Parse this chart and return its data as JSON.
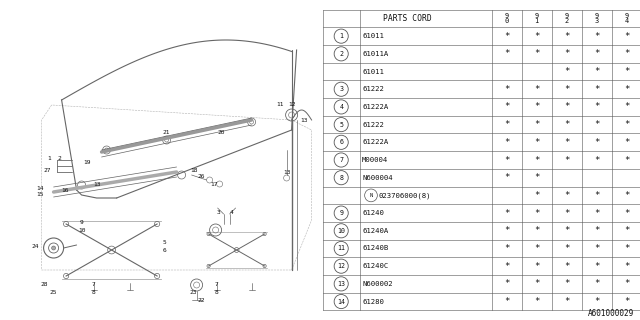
{
  "bg_color": "#ffffff",
  "line_color": "#666666",
  "text_color": "#111111",
  "footer_code": "A601000029",
  "table": {
    "header_parts": "PARTS CORD",
    "header_years": [
      "9\n0",
      "9\n1",
      "9\n2",
      "9\n3",
      "9\n4"
    ],
    "rows": [
      {
        "num": "1",
        "show_circle": true,
        "part": "61011",
        "n_prefix": false,
        "cols": [
          1,
          1,
          1,
          1,
          1
        ]
      },
      {
        "num": "2",
        "show_circle": true,
        "part": "61011A",
        "n_prefix": false,
        "cols": [
          1,
          1,
          1,
          1,
          1
        ]
      },
      {
        "num": "2",
        "show_circle": false,
        "part": "61011",
        "n_prefix": false,
        "cols": [
          0,
          0,
          1,
          1,
          1
        ]
      },
      {
        "num": "3",
        "show_circle": true,
        "part": "61222",
        "n_prefix": false,
        "cols": [
          1,
          1,
          1,
          1,
          1
        ]
      },
      {
        "num": "4",
        "show_circle": true,
        "part": "61222A",
        "n_prefix": false,
        "cols": [
          1,
          1,
          1,
          1,
          1
        ]
      },
      {
        "num": "5",
        "show_circle": true,
        "part": "61222",
        "n_prefix": false,
        "cols": [
          1,
          1,
          1,
          1,
          1
        ]
      },
      {
        "num": "6",
        "show_circle": true,
        "part": "61222A",
        "n_prefix": false,
        "cols": [
          1,
          1,
          1,
          1,
          1
        ]
      },
      {
        "num": "7",
        "show_circle": true,
        "part": "M00004",
        "n_prefix": false,
        "cols": [
          1,
          1,
          1,
          1,
          1
        ]
      },
      {
        "num": "8",
        "show_circle": true,
        "part": "N600004",
        "n_prefix": false,
        "cols": [
          1,
          1,
          0,
          0,
          0
        ]
      },
      {
        "num": "8",
        "show_circle": false,
        "part": "023706000(8)",
        "n_prefix": true,
        "cols": [
          0,
          1,
          1,
          1,
          1
        ]
      },
      {
        "num": "9",
        "show_circle": true,
        "part": "61240",
        "n_prefix": false,
        "cols": [
          1,
          1,
          1,
          1,
          1
        ]
      },
      {
        "num": "10",
        "show_circle": true,
        "part": "61240A",
        "n_prefix": false,
        "cols": [
          1,
          1,
          1,
          1,
          1
        ]
      },
      {
        "num": "11",
        "show_circle": true,
        "part": "61240B",
        "n_prefix": false,
        "cols": [
          1,
          1,
          1,
          1,
          1
        ]
      },
      {
        "num": "12",
        "show_circle": true,
        "part": "61240C",
        "n_prefix": false,
        "cols": [
          1,
          1,
          1,
          1,
          1
        ]
      },
      {
        "num": "13",
        "show_circle": true,
        "part": "N600002",
        "n_prefix": false,
        "cols": [
          1,
          1,
          1,
          1,
          1
        ]
      },
      {
        "num": "14",
        "show_circle": true,
        "part": "61280",
        "n_prefix": false,
        "cols": [
          1,
          1,
          1,
          1,
          1
        ]
      }
    ]
  }
}
